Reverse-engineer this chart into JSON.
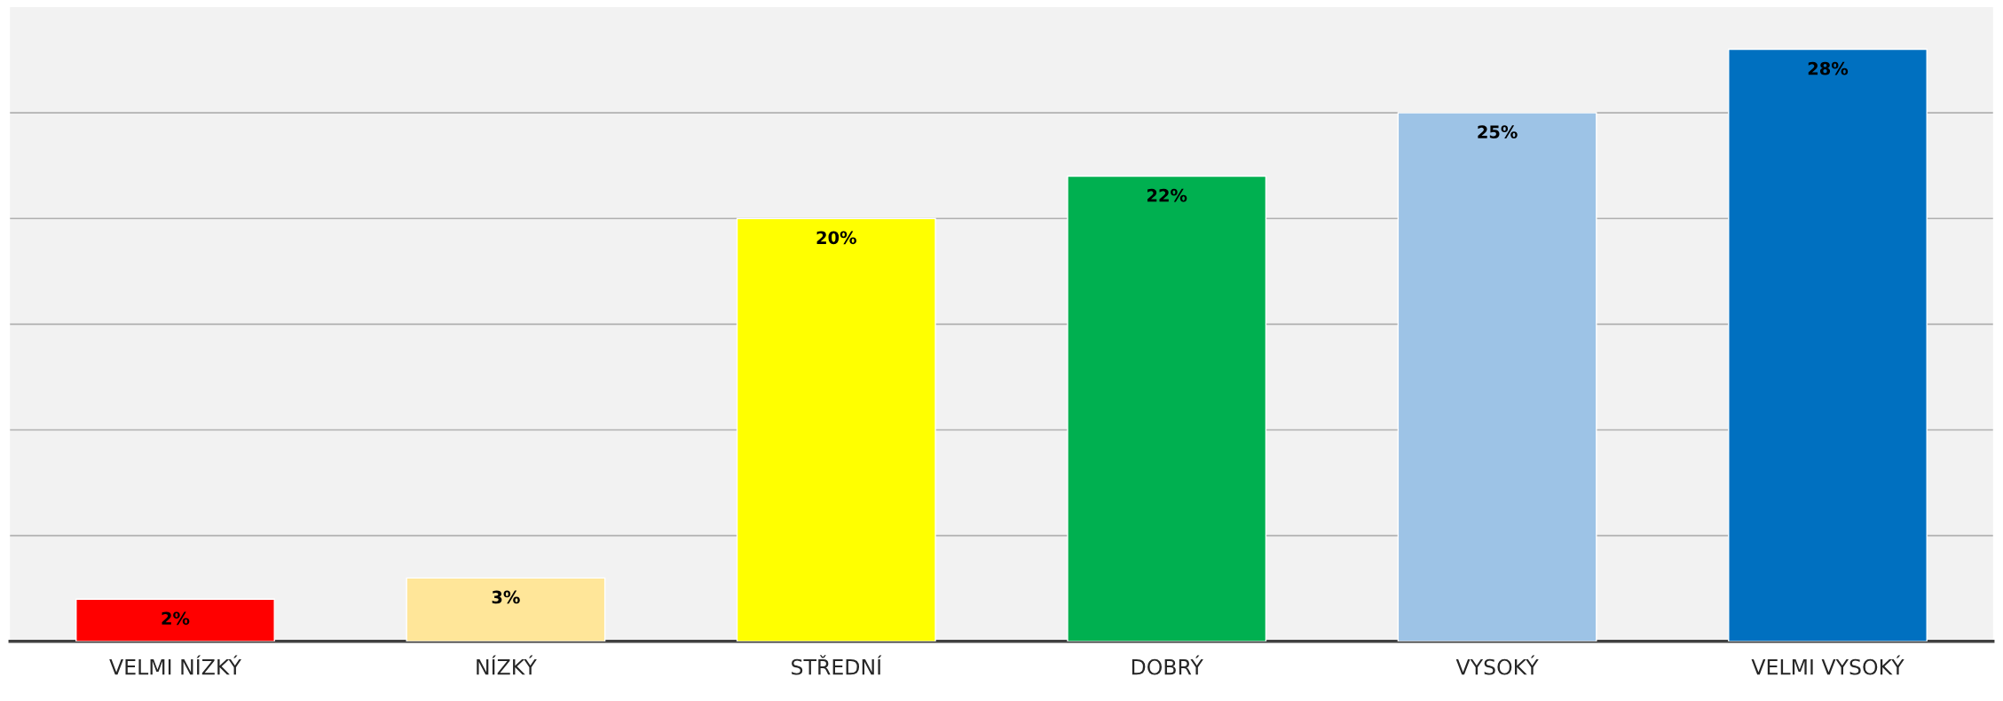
{
  "chart_data": {
    "type": "bar",
    "categories": [
      "VELMI NÍZKÝ",
      "NÍZKÝ",
      "STŘEDNÍ",
      "DOBRÝ",
      "VYSOKÝ",
      "VELMI VYSOKÝ"
    ],
    "values": [
      2,
      3,
      20,
      22,
      25,
      28
    ],
    "colors": [
      "#ff0000",
      "#ffe699",
      "#ffff00",
      "#00b050",
      "#9dc3e6",
      "#0070c0"
    ],
    "value_labels": [
      "2%",
      "3%",
      "20%",
      "22%",
      "25%",
      "28%"
    ],
    "ylim": [
      0,
      30
    ],
    "yticks": [
      {
        "value": 5,
        "label": null
      },
      {
        "value": 10,
        "label": null
      },
      {
        "value": 15,
        "label": null
      },
      {
        "value": 20,
        "label": null
      },
      {
        "value": 25,
        "label": null
      }
    ],
    "tick_labels": "x",
    "grid": "y"
  }
}
